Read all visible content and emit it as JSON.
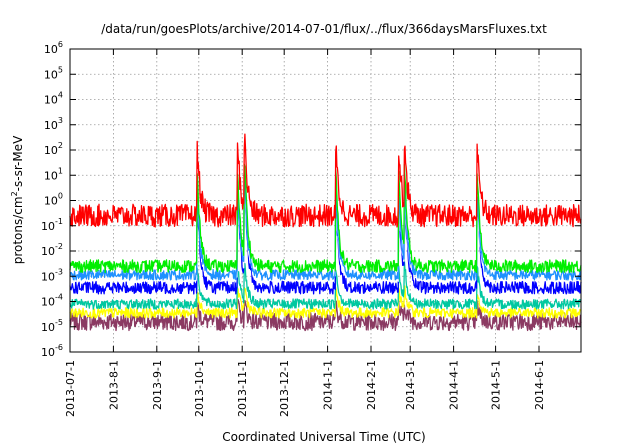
{
  "chart_data": {
    "type": "line",
    "title": "/data/run/goesPlots/archive/2014-07-01/flux/../flux/366daysMarsFluxes.txt",
    "xlabel": "Coordinated Universal Time (UTC)",
    "ylabel": "protons/cm2-s-sr-MeV",
    "ylabel_parts": [
      "protons/cm",
      "2",
      "-s-sr-MeV"
    ],
    "yscale": "log",
    "ylim_exp": [
      -6,
      6
    ],
    "x_start": "2013-07-01",
    "x_end": "2014-07-01",
    "grid": true,
    "x_ticks": [
      "2013-07-1",
      "2013-8-1",
      "2013-9-1",
      "2013-10-1",
      "2013-11-1",
      "2013-12-1",
      "2014-1-1",
      "2014-2-1",
      "2014-3-1",
      "2014-4-1",
      "2014-5-1",
      "2014-6-1"
    ],
    "y_ticks": [
      {
        "base": "10",
        "exp": "-6"
      },
      {
        "base": "10",
        "exp": "-5"
      },
      {
        "base": "10",
        "exp": "-4"
      },
      {
        "base": "10",
        "exp": "-3"
      },
      {
        "base": "10",
        "exp": "-2"
      },
      {
        "base": "10",
        "exp": "-1"
      },
      {
        "base": "10",
        "exp": "0"
      },
      {
        "base": "10",
        "exp": "1"
      },
      {
        "base": "10",
        "exp": "2"
      },
      {
        "base": "10",
        "exp": "3"
      },
      {
        "base": "10",
        "exp": "4"
      },
      {
        "base": "10",
        "exp": "5"
      },
      {
        "base": "10",
        "exp": "6"
      }
    ],
    "events": [
      "2013-09-30",
      "2013-10-29",
      "2013-11-03",
      "2014-01-07",
      "2014-02-21",
      "2014-02-25",
      "2014-04-18"
    ],
    "series": [
      {
        "color": "#8b3a62",
        "baseline_log": -4.8,
        "noise": 0.35,
        "peak_boost": 0.6
      },
      {
        "color": "#ffff00",
        "baseline_log": -4.45,
        "noise": 0.2,
        "peak_boost": 0.9
      },
      {
        "color": "#00c8a0",
        "baseline_log": -4.1,
        "noise": 0.2,
        "peak_boost": 1.4
      },
      {
        "color": "#0000ff",
        "baseline_log": -3.45,
        "noise": 0.25,
        "peak_boost": 3.6
      },
      {
        "color": "#ffffff",
        "baseline_log": -3.05,
        "noise": 0.18,
        "peak_boost": 3.2
      },
      {
        "color": "#1e90ff",
        "baseline_log": -2.95,
        "noise": 0.2,
        "peak_boost": 3.2
      },
      {
        "color": "#00ee00",
        "baseline_log": -2.6,
        "noise": 0.25,
        "peak_boost": 3.6
      },
      {
        "color": "#ff0000",
        "baseline_log": -0.6,
        "noise": 0.45,
        "peak_boost": 2.6
      }
    ]
  }
}
